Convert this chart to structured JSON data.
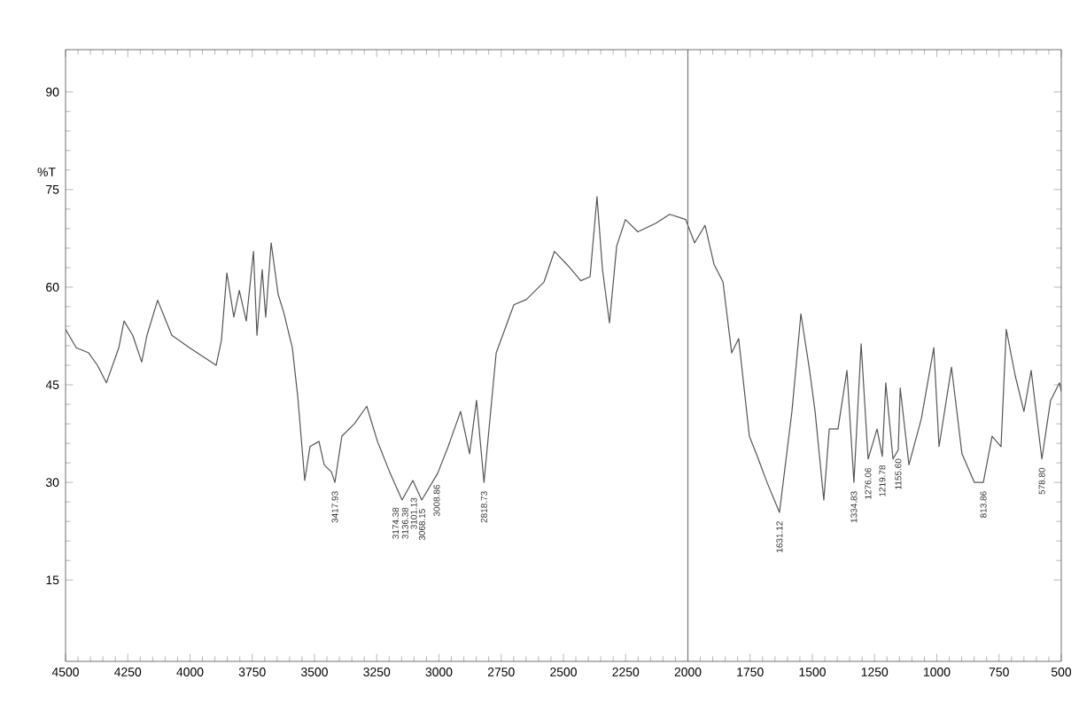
{
  "chart_data": {
    "type": "line",
    "ylabel": "%T",
    "color": "#555555",
    "xlim": [
      4500,
      500
    ],
    "ylim": [
      2.5,
      96.5
    ],
    "xticks": [
      4500,
      4250,
      4000,
      3750,
      3500,
      3250,
      3000,
      2750,
      2500,
      2250,
      2000,
      1750,
      1500,
      1250,
      1000,
      750,
      500
    ],
    "yticks": [
      15,
      30,
      45,
      60,
      75,
      90
    ],
    "ref_lines": [
      {
        "axis": "x",
        "value": 2000,
        "color": "#777777"
      }
    ],
    "x": [
      4500,
      4457,
      4407,
      4372,
      4336,
      4286,
      4265,
      4230,
      4194,
      4173,
      4130,
      4073,
      4002,
      3895,
      3874,
      3852,
      3824,
      3802,
      3774,
      3745,
      3731,
      3710,
      3696,
      3674,
      3646,
      3624,
      3589,
      3567,
      3539,
      3518,
      3482,
      3461,
      3432,
      3418,
      3390,
      3340,
      3290,
      3247,
      3198,
      3148,
      3105,
      3069,
      3005,
      2963,
      2913,
      2877,
      2849,
      2819,
      2770,
      2699,
      2649,
      2578,
      2536,
      2486,
      2430,
      2393,
      2365,
      2343,
      2315,
      2286,
      2251,
      2201,
      2130,
      2073,
      2009,
      1973,
      1931,
      1895,
      1859,
      1824,
      1796,
      1753,
      1717,
      1682,
      1632,
      1582,
      1546,
      1511,
      1489,
      1454,
      1432,
      1397,
      1361,
      1333,
      1304,
      1276,
      1240,
      1219,
      1205,
      1176,
      1155,
      1147,
      1112,
      1062,
      1012,
      991,
      941,
      899,
      849,
      813,
      778,
      742,
      721,
      685,
      650,
      621,
      578,
      543,
      507,
      500
    ],
    "values": [
      53.5,
      50.7,
      49.9,
      48,
      45.3,
      50.7,
      54.8,
      52.6,
      48.5,
      52.6,
      58,
      52.6,
      50.7,
      48,
      51.8,
      62.2,
      55.4,
      59.5,
      54.8,
      65.5,
      52.6,
      62.7,
      55.4,
      66.8,
      58.9,
      56.2,
      50.7,
      43.1,
      30.3,
      35.5,
      36.3,
      32.7,
      31.6,
      30,
      37.1,
      39,
      41.7,
      36.3,
      31.6,
      27.3,
      30.3,
      27.3,
      31.4,
      35.5,
      40.9,
      34.4,
      42.6,
      30,
      49.9,
      57.3,
      58.1,
      60.8,
      65.5,
      63.5,
      61,
      61.6,
      73.9,
      62.7,
      54.5,
      66.3,
      70.4,
      68.5,
      69.8,
      71.2,
      70.4,
      66.8,
      69.5,
      63.5,
      60.8,
      49.9,
      52.1,
      37.1,
      33.6,
      30,
      25.4,
      40.9,
      55.9,
      47.2,
      40.9,
      27.3,
      38.2,
      38.2,
      47.2,
      30,
      51.3,
      33.6,
      38.2,
      34,
      45.3,
      33.6,
      35,
      44.5,
      32.7,
      39.8,
      50.7,
      35.5,
      47.7,
      34.4,
      30,
      30,
      37.1,
      35.5,
      53.5,
      46.4,
      40.9,
      47.2,
      33.6,
      42.6,
      45.3,
      44
    ],
    "annotations": [
      {
        "text": "3417.93",
        "x": 3418,
        "y": 30
      },
      {
        "text": "3174.38",
        "x": 3174,
        "y": 27.5
      },
      {
        "text": "3136.38",
        "x": 3136,
        "y": 27.5
      },
      {
        "text": "3101.13",
        "x": 3101,
        "y": 29
      },
      {
        "text": "3068.15",
        "x": 3068,
        "y": 27.3
      },
      {
        "text": "3008.86",
        "x": 3009,
        "y": 31
      },
      {
        "text": "2818.73",
        "x": 2819,
        "y": 30
      },
      {
        "text": "1631.12",
        "x": 1632,
        "y": 25.4
      },
      {
        "text": "1334.83",
        "x": 1333,
        "y": 30
      },
      {
        "text": "1276.06",
        "x": 1276,
        "y": 33.6
      },
      {
        "text": "1219.78",
        "x": 1219,
        "y": 34
      },
      {
        "text": "1155.60",
        "x": 1155,
        "y": 35
      },
      {
        "text": "813.86",
        "x": 813,
        "y": 30
      },
      {
        "text": "578.80",
        "x": 578,
        "y": 33.6
      }
    ]
  }
}
